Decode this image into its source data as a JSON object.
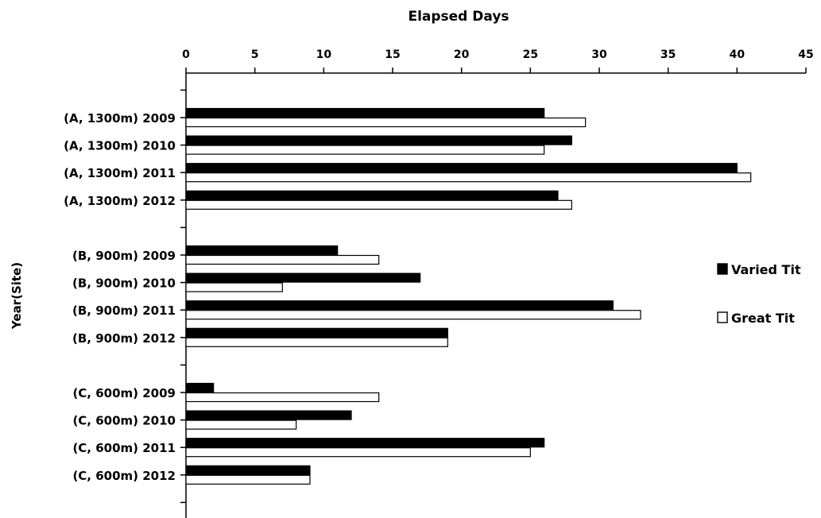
{
  "chart_data": {
    "type": "bar",
    "orientation": "horizontal",
    "xlabel": "Elapsed Days",
    "ylabel": "Year(Site)",
    "xlim": [
      0,
      45
    ],
    "xticks": [
      0,
      5,
      10,
      15,
      20,
      25,
      30,
      35,
      40,
      45
    ],
    "x_axis_position": "top",
    "legend_position": "right",
    "grid": false,
    "categories": [
      "(A, 1300m) 2009",
      "(A, 1300m) 2010",
      "(A, 1300m) 2011",
      "(A, 1300m) 2012",
      "(B, 900m) 2009",
      "(B, 900m) 2010",
      "(B, 900m) 2011",
      "(B, 900m) 2012",
      "(C, 600m) 2009",
      "(C, 600m) 2010",
      "(C, 600m) 2011",
      "(C, 600m) 2012"
    ],
    "series": [
      {
        "name": "Varied Tit",
        "color": "#000000",
        "values": [
          26,
          28,
          40,
          27,
          11,
          17,
          31,
          19,
          2,
          12,
          26,
          9
        ]
      },
      {
        "name": "Great Tit",
        "color": "#ffffff",
        "values": [
          29,
          26,
          41,
          28,
          14,
          7,
          33,
          19,
          14,
          8,
          25,
          9
        ]
      }
    ]
  }
}
